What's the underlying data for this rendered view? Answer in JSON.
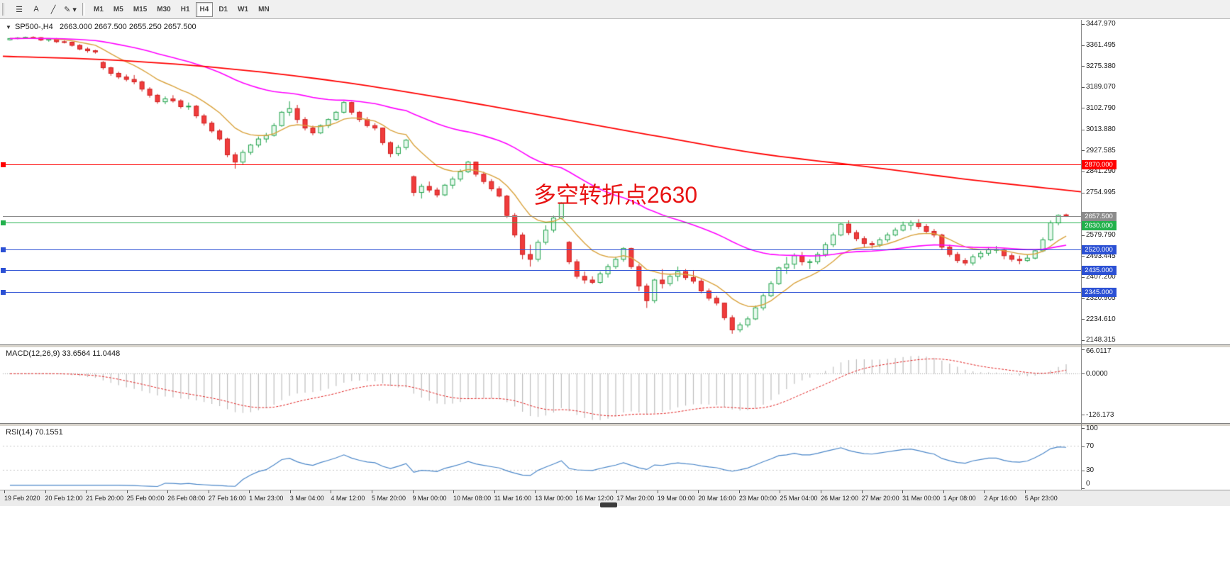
{
  "toolbar": {
    "tools": [
      {
        "name": "objects-toolbar-icon",
        "glyph": "☰"
      },
      {
        "name": "text-label-tool-icon",
        "glyph": "A"
      },
      {
        "name": "trendline-tool-icon",
        "glyph": "╱"
      },
      {
        "name": "draw-tool-icon",
        "glyph": "✎ ▾"
      }
    ],
    "timeframes": [
      "M1",
      "M5",
      "M15",
      "M30",
      "H1",
      "H4",
      "D1",
      "W1",
      "MN"
    ],
    "selected_timeframe": "H4"
  },
  "chart": {
    "title": {
      "collapse_glyph": "▼",
      "symbol": "SP500-,H4",
      "ohlc": "2663.000 2667.500 2655.250 2657.500"
    },
    "annotation": {
      "text": "多空转折点2630",
      "color": "#e81414"
    },
    "price_ticks": [
      "3447.970",
      "3361.495",
      "3275.380",
      "3189.070",
      "3102.790",
      "3013.880",
      "2927.585",
      "2841.290",
      "2754.995",
      "2579.790",
      "2493.445",
      "2407.200",
      "2320.905",
      "2234.610",
      "2148.315"
    ],
    "hlines": [
      {
        "label": "2870.000",
        "value": 2870.0,
        "color": "#ff0000",
        "marker": true
      },
      {
        "label": "2657.500",
        "value": 2657.5,
        "color": "#8c8c8c",
        "marker": false
      },
      {
        "label": "2630.000",
        "value": 2630.0,
        "color": "#22b14c",
        "marker": true
      },
      {
        "label": "2520.000",
        "value": 2520.0,
        "color": "#2b50d4",
        "marker": true
      },
      {
        "label": "2435.000",
        "value": 2435.0,
        "color": "#2b50d4",
        "marker": true
      },
      {
        "label": "2345.000",
        "value": 2345.0,
        "color": "#2b50d4",
        "marker": true
      }
    ],
    "colors": {
      "bull_stroke": "#1fa24a",
      "bull_fill": "#e8f8ee",
      "bear_stroke": "#cf1d1d",
      "bear_fill": "#f03c3c",
      "ma_fast": "#d9a23c",
      "ma_medium": "#ff00ff",
      "ma_slow": "#ff0000",
      "macd_hist": "#bdbdbd",
      "macd_signal": "#e02020",
      "rsi_line": "#4a86c8"
    }
  },
  "chart_data": {
    "type": "candlestick",
    "symbol": "SP500",
    "timeframe": "H4",
    "ohlc": [
      [
        3383,
        3390,
        3380,
        3388
      ],
      [
        3388,
        3394,
        3385,
        3391
      ],
      [
        3391,
        3396,
        3388,
        3393
      ],
      [
        3393,
        3397,
        3389,
        3392
      ],
      [
        3392,
        3394,
        3378,
        3382
      ],
      [
        3382,
        3388,
        3375,
        3386
      ],
      [
        3386,
        3390,
        3370,
        3375
      ],
      [
        3375,
        3380,
        3368,
        3373
      ],
      [
        3373,
        3376,
        3355,
        3360
      ],
      [
        3360,
        3365,
        3340,
        3345
      ],
      [
        3345,
        3352,
        3330,
        3338
      ],
      [
        3338,
        3342,
        3326,
        3333
      ],
      [
        3290,
        3295,
        3260,
        3268
      ],
      [
        3268,
        3272,
        3235,
        3245
      ],
      [
        3245,
        3252,
        3222,
        3230
      ],
      [
        3230,
        3240,
        3212,
        3220
      ],
      [
        3220,
        3238,
        3200,
        3210
      ],
      [
        3210,
        3215,
        3170,
        3180
      ],
      [
        3180,
        3188,
        3145,
        3155
      ],
      [
        3155,
        3160,
        3120,
        3128
      ],
      [
        3128,
        3150,
        3118,
        3140
      ],
      [
        3140,
        3155,
        3125,
        3132
      ],
      [
        3132,
        3138,
        3100,
        3108
      ],
      [
        3108,
        3125,
        3095,
        3110
      ],
      [
        3110,
        3115,
        3060,
        3070
      ],
      [
        3070,
        3078,
        3030,
        3040
      ],
      [
        3040,
        3048,
        3000,
        3008
      ],
      [
        3008,
        3015,
        2968,
        2975
      ],
      [
        2975,
        2980,
        2900,
        2910
      ],
      [
        2910,
        2920,
        2853,
        2880
      ],
      [
        2880,
        2930,
        2870,
        2920
      ],
      [
        2920,
        2955,
        2910,
        2950
      ],
      [
        2950,
        2985,
        2940,
        2975
      ],
      [
        2975,
        3000,
        2960,
        2990
      ],
      [
        2990,
        3040,
        2985,
        3030
      ],
      [
        3030,
        3090,
        3025,
        3085
      ],
      [
        3085,
        3130,
        3070,
        3100
      ],
      [
        3100,
        3115,
        3040,
        3055
      ],
      [
        3055,
        3065,
        3010,
        3020
      ],
      [
        3020,
        3030,
        2990,
        3000
      ],
      [
        3000,
        3035,
        2995,
        3030
      ],
      [
        3030,
        3060,
        3020,
        3055
      ],
      [
        3055,
        3090,
        3050,
        3085
      ],
      [
        3085,
        3130,
        3080,
        3125
      ],
      [
        3125,
        3128,
        3075,
        3085
      ],
      [
        3085,
        3090,
        3045,
        3055
      ],
      [
        3055,
        3065,
        3022,
        3030
      ],
      [
        3030,
        3040,
        3010,
        3020
      ],
      [
        3020,
        3022,
        2950,
        2960
      ],
      [
        2960,
        2965,
        2900,
        2915
      ],
      [
        2915,
        2950,
        2905,
        2940
      ],
      [
        2940,
        2975,
        2930,
        2970
      ],
      [
        2820,
        2825,
        2740,
        2755
      ],
      [
        2755,
        2790,
        2730,
        2780
      ],
      [
        2780,
        2800,
        2755,
        2765
      ],
      [
        2765,
        2775,
        2735,
        2745
      ],
      [
        2745,
        2790,
        2740,
        2785
      ],
      [
        2785,
        2820,
        2770,
        2810
      ],
      [
        2810,
        2850,
        2800,
        2840
      ],
      [
        2840,
        2885,
        2835,
        2880
      ],
      [
        2880,
        2882,
        2820,
        2830
      ],
      [
        2830,
        2840,
        2790,
        2800
      ],
      [
        2800,
        2810,
        2760,
        2770
      ],
      [
        2770,
        2780,
        2735,
        2740
      ],
      [
        2740,
        2745,
        2650,
        2660
      ],
      [
        2660,
        2670,
        2570,
        2580
      ],
      [
        2580,
        2590,
        2480,
        2500
      ],
      [
        2500,
        2540,
        2450,
        2480
      ],
      [
        2480,
        2560,
        2470,
        2550
      ],
      [
        2550,
        2620,
        2540,
        2600
      ],
      [
        2600,
        2660,
        2590,
        2650
      ],
      [
        2650,
        2715,
        2645,
        2710
      ],
      [
        2550,
        2555,
        2460,
        2470
      ],
      [
        2470,
        2480,
        2400,
        2410
      ],
      [
        2410,
        2430,
        2380,
        2395
      ],
      [
        2395,
        2410,
        2378,
        2385
      ],
      [
        2385,
        2430,
        2380,
        2420
      ],
      [
        2420,
        2460,
        2405,
        2450
      ],
      [
        2450,
        2490,
        2440,
        2480
      ],
      [
        2480,
        2530,
        2470,
        2525
      ],
      [
        2525,
        2528,
        2440,
        2450
      ],
      [
        2450,
        2460,
        2350,
        2370
      ],
      [
        2370,
        2380,
        2280,
        2310
      ],
      [
        2310,
        2400,
        2300,
        2395
      ],
      [
        2395,
        2440,
        2360,
        2380
      ],
      [
        2380,
        2420,
        2370,
        2410
      ],
      [
        2410,
        2450,
        2390,
        2430
      ],
      [
        2430,
        2440,
        2395,
        2405
      ],
      [
        2405,
        2435,
        2380,
        2390
      ],
      [
        2390,
        2400,
        2340,
        2350
      ],
      [
        2350,
        2360,
        2310,
        2320
      ],
      [
        2320,
        2330,
        2290,
        2300
      ],
      [
        2300,
        2302,
        2230,
        2240
      ],
      [
        2240,
        2250,
        2174,
        2190
      ],
      [
        2190,
        2220,
        2180,
        2210
      ],
      [
        2210,
        2245,
        2200,
        2235
      ],
      [
        2235,
        2290,
        2230,
        2280
      ],
      [
        2280,
        2340,
        2270,
        2330
      ],
      [
        2330,
        2390,
        2325,
        2380
      ],
      [
        2380,
        2450,
        2375,
        2445
      ],
      [
        2445,
        2490,
        2420,
        2460
      ],
      [
        2460,
        2505,
        2440,
        2495
      ],
      [
        2495,
        2510,
        2455,
        2470
      ],
      [
        2470,
        2480,
        2440,
        2470
      ],
      [
        2470,
        2510,
        2460,
        2500
      ],
      [
        2500,
        2550,
        2490,
        2540
      ],
      [
        2540,
        2590,
        2530,
        2580
      ],
      [
        2580,
        2630,
        2575,
        2625
      ],
      [
        2625,
        2640,
        2580,
        2590
      ],
      [
        2590,
        2600,
        2555,
        2565
      ],
      [
        2565,
        2575,
        2530,
        2545
      ],
      [
        2545,
        2555,
        2525,
        2540
      ],
      [
        2540,
        2570,
        2530,
        2560
      ],
      [
        2560,
        2590,
        2550,
        2580
      ],
      [
        2580,
        2610,
        2575,
        2600
      ],
      [
        2600,
        2635,
        2595,
        2620
      ],
      [
        2620,
        2640,
        2600,
        2630
      ],
      [
        2630,
        2645,
        2605,
        2615
      ],
      [
        2615,
        2625,
        2585,
        2595
      ],
      [
        2595,
        2605,
        2570,
        2580
      ],
      [
        2580,
        2585,
        2520,
        2530
      ],
      [
        2530,
        2540,
        2490,
        2500
      ],
      [
        2500,
        2510,
        2465,
        2475
      ],
      [
        2475,
        2485,
        2455,
        2465
      ],
      [
        2465,
        2500,
        2455,
        2490
      ],
      [
        2490,
        2515,
        2480,
        2505
      ],
      [
        2505,
        2530,
        2495,
        2520
      ],
      [
        2520,
        2535,
        2505,
        2520
      ],
      [
        2520,
        2525,
        2480,
        2495
      ],
      [
        2495,
        2505,
        2470,
        2480
      ],
      [
        2480,
        2495,
        2460,
        2475
      ],
      [
        2475,
        2500,
        2470,
        2485
      ],
      [
        2485,
        2520,
        2480,
        2515
      ],
      [
        2515,
        2570,
        2510,
        2560
      ],
      [
        2560,
        2640,
        2555,
        2630
      ],
      [
        2630,
        2665,
        2620,
        2661
      ],
      [
        2663,
        2667.5,
        2655.25,
        2657.5
      ]
    ],
    "overlays": [
      {
        "name": "ma-fast",
        "method": "ema",
        "period": 10
      },
      {
        "name": "ma-medium",
        "method": "ema",
        "period": 45
      },
      {
        "name": "ma-slow",
        "points": [
          [
            0,
            3315
          ],
          [
            0.1,
            3300
          ],
          [
            0.2,
            3268
          ],
          [
            0.3,
            3218
          ],
          [
            0.4,
            3150
          ],
          [
            0.5,
            3072
          ],
          [
            0.6,
            2992
          ],
          [
            0.7,
            2916
          ],
          [
            0.8,
            2862
          ],
          [
            0.9,
            2806
          ],
          [
            1,
            2758
          ]
        ]
      }
    ],
    "indicators": {
      "macd": {
        "fast": 12,
        "slow": 26,
        "signal": 9
      },
      "rsi": {
        "period": 14
      }
    }
  },
  "macd_panel": {
    "label": "MACD(12,26,9) 33.6564 11.0448",
    "scale": [
      {
        "label": "66.0117",
        "value": 66.0117
      },
      {
        "label": "0.0000",
        "value": 0
      },
      {
        "label": "-126.173",
        "value": -126.173
      }
    ]
  },
  "rsi_panel": {
    "label": "RSI(14) 70.1551",
    "levels": [
      {
        "label": "100",
        "value": 100,
        "line": false
      },
      {
        "label": "70",
        "value": 70,
        "line": true
      },
      {
        "label": "30",
        "value": 30,
        "line": true
      },
      {
        "label": "0",
        "value": 0,
        "line": false
      }
    ]
  },
  "time_axis": {
    "labels": [
      "19 Feb 2020",
      "20 Feb 12:00",
      "21 Feb 20:00",
      "25 Feb 00:00",
      "26 Feb 08:00",
      "27 Feb 16:00",
      "1 Mar 23:00",
      "3 Mar 04:00",
      "4 Mar 12:00",
      "5 Mar 20:00",
      "9 Mar 00:00",
      "10 Mar 08:00",
      "11 Mar 16:00",
      "13 Mar 00:00",
      "16 Mar 12:00",
      "17 Mar 20:00",
      "19 Mar 00:00",
      "20 Mar 16:00",
      "23 Mar 00:00",
      "25 Mar 04:00",
      "26 Mar 12:00",
      "27 Mar 20:00",
      "31 Mar 00:00",
      "1 Apr 08:00",
      "2 Apr 16:00",
      "5 Apr 23:00"
    ]
  }
}
